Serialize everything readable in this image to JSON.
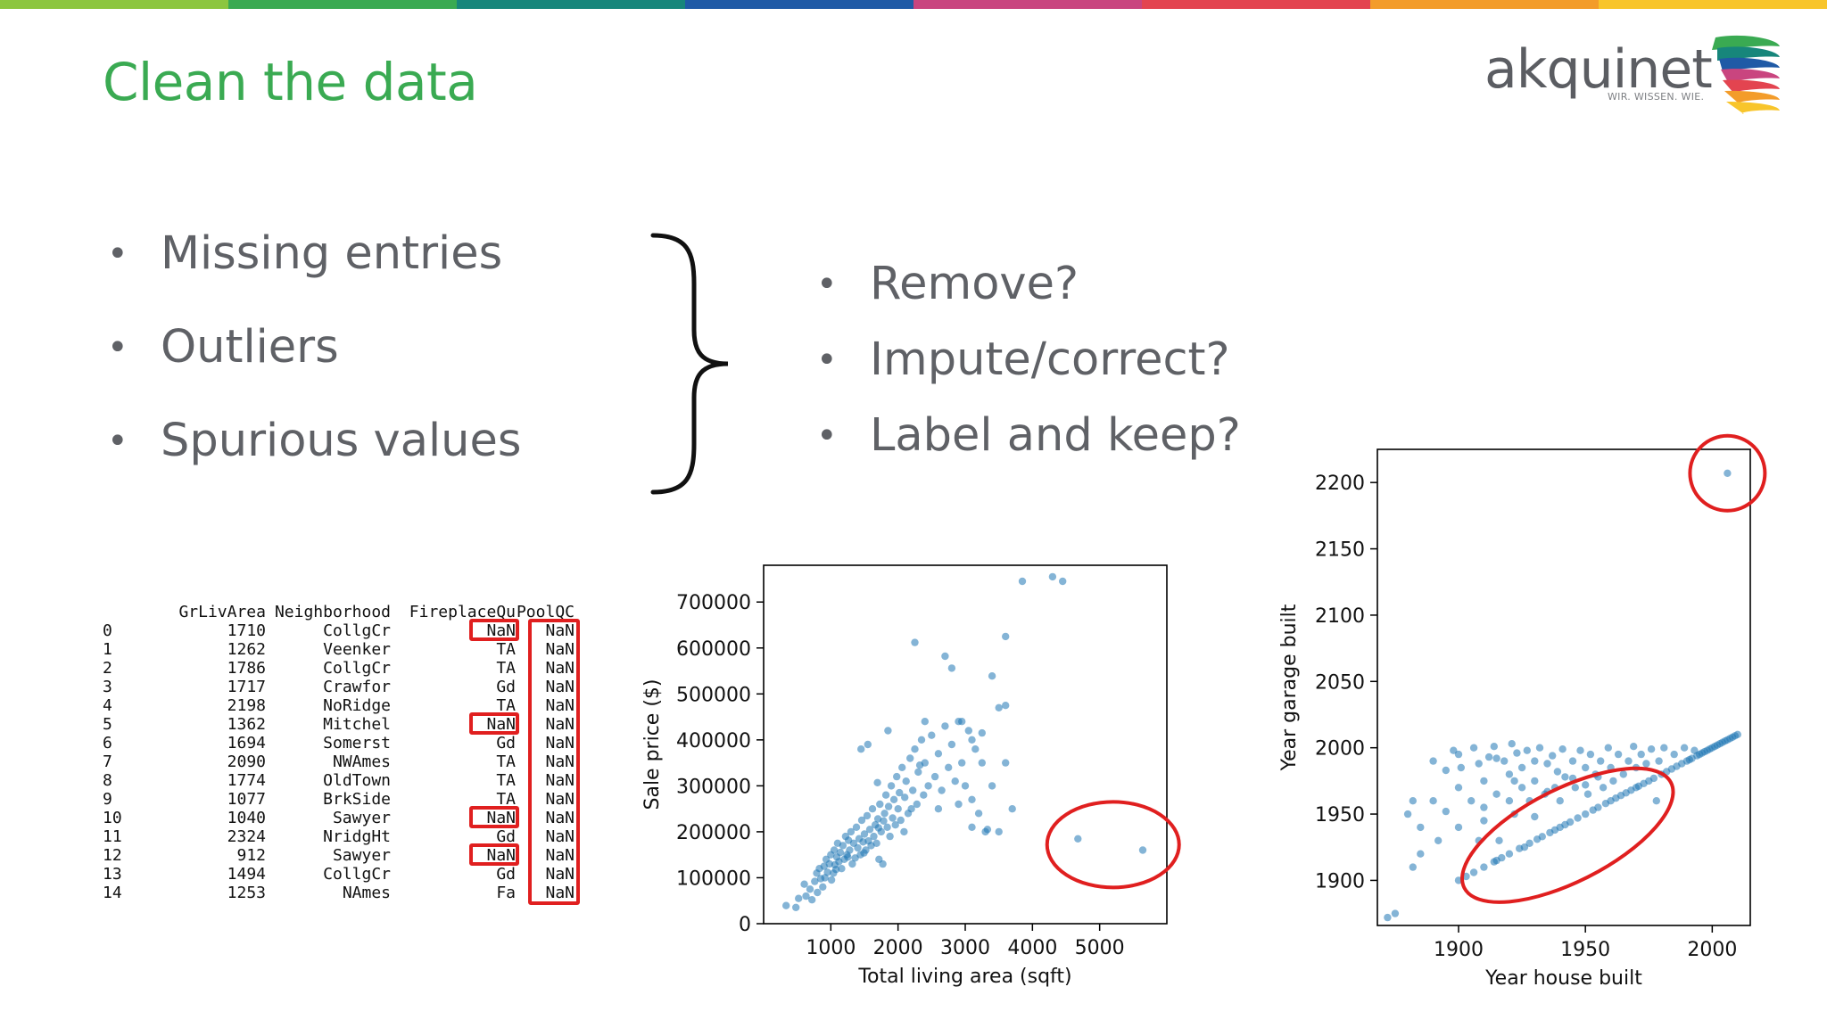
{
  "slide": {
    "title": "Clean the data",
    "stripe_colors": [
      "#8cc63f",
      "#3aaa52",
      "#17867b",
      "#1f5aa6",
      "#c9457f",
      "#e34450",
      "#f39c2a",
      "#f8c52b"
    ]
  },
  "logo": {
    "wordmark": "akquinet",
    "tagline": "WIR. WISSEN. WIE.",
    "swoosh_colors": [
      "#3aaa52",
      "#17867b",
      "#1f5aa6",
      "#c9457f",
      "#e34450",
      "#f39c2a",
      "#f8c52b"
    ]
  },
  "problems": [
    {
      "label": "Missing entries"
    },
    {
      "label": "Outliers"
    },
    {
      "label": "Spurious values"
    }
  ],
  "actions": [
    {
      "label": "Remove?"
    },
    {
      "label": "Impute/correct?"
    },
    {
      "label": "Label and keep?"
    }
  ],
  "table": {
    "columns": [
      "",
      "GrLivArea",
      "Neighborhood",
      "FireplaceQu",
      "PoolQC"
    ],
    "rows": [
      [
        "0",
        "1710",
        "CollgCr",
        "NaN",
        "NaN"
      ],
      [
        "1",
        "1262",
        "Veenker",
        "TA",
        "NaN"
      ],
      [
        "2",
        "1786",
        "CollgCr",
        "TA",
        "NaN"
      ],
      [
        "3",
        "1717",
        "Crawfor",
        "Gd",
        "NaN"
      ],
      [
        "4",
        "2198",
        "NoRidge",
        "TA",
        "NaN"
      ],
      [
        "5",
        "1362",
        "Mitchel",
        "NaN",
        "NaN"
      ],
      [
        "6",
        "1694",
        "Somerst",
        "Gd",
        "NaN"
      ],
      [
        "7",
        "2090",
        "NWAmes",
        "TA",
        "NaN"
      ],
      [
        "8",
        "1774",
        "OldTown",
        "TA",
        "NaN"
      ],
      [
        "9",
        "1077",
        "BrkSide",
        "TA",
        "NaN"
      ],
      [
        "10",
        "1040",
        "Sawyer",
        "NaN",
        "NaN"
      ],
      [
        "11",
        "2324",
        "NridgHt",
        "Gd",
        "NaN"
      ],
      [
        "12",
        "912",
        "Sawyer",
        "NaN",
        "NaN"
      ],
      [
        "13",
        "1494",
        "CollgCr",
        "Gd",
        "NaN"
      ],
      [
        "14",
        "1253",
        "NAmes",
        "Fa",
        "NaN"
      ]
    ],
    "highlight_color": "#e01f1f"
  },
  "chart_data": [
    {
      "type": "scatter",
      "title": "",
      "xlabel": "Total living area (sqft)",
      "ylabel": "Sale price ($)",
      "xlim": [
        0,
        6000
      ],
      "ylim": [
        0,
        780000
      ],
      "xticks": [
        1000,
        2000,
        3000,
        4000,
        5000
      ],
      "yticks": [
        0,
        100000,
        200000,
        300000,
        400000,
        500000,
        600000,
        700000
      ],
      "grid": false,
      "point_color": "#1f77b4",
      "outlier_circle_color": "#e01f1f",
      "points": [
        [
          334,
          39300
        ],
        [
          480,
          35311
        ],
        [
          520,
          55000
        ],
        [
          605,
          86000
        ],
        [
          630,
          60000
        ],
        [
          690,
          75000
        ],
        [
          720,
          52000
        ],
        [
          760,
          92000
        ],
        [
          790,
          110000
        ],
        [
          800,
          68000
        ],
        [
          830,
          120000
        ],
        [
          850,
          98000
        ],
        [
          880,
          80000
        ],
        [
          900,
          125000
        ],
        [
          912,
          100000
        ],
        [
          930,
          140000
        ],
        [
          950,
          112000
        ],
        [
          980,
          130000
        ],
        [
          1000,
          150000
        ],
        [
          1010,
          95000
        ],
        [
          1040,
          110000
        ],
        [
          1050,
          160000
        ],
        [
          1060,
          128000
        ],
        [
          1077,
          118000
        ],
        [
          1090,
          145000
        ],
        [
          1100,
          175000
        ],
        [
          1120,
          135000
        ],
        [
          1140,
          155000
        ],
        [
          1160,
          120000
        ],
        [
          1180,
          170000
        ],
        [
          1200,
          140000
        ],
        [
          1220,
          190000
        ],
        [
          1240,
          150000
        ],
        [
          1253,
          145000
        ],
        [
          1262,
          181500
        ],
        [
          1280,
          160000
        ],
        [
          1300,
          200000
        ],
        [
          1320,
          130000
        ],
        [
          1340,
          175000
        ],
        [
          1362,
          143000
        ],
        [
          1380,
          210000
        ],
        [
          1400,
          165000
        ],
        [
          1420,
          185000
        ],
        [
          1440,
          150000
        ],
        [
          1460,
          225000
        ],
        [
          1480,
          178000
        ],
        [
          1494,
          154000
        ],
        [
          1500,
          195000
        ],
        [
          1520,
          160000
        ],
        [
          1540,
          235000
        ],
        [
          1560,
          180000
        ],
        [
          1580,
          205000
        ],
        [
          1600,
          170000
        ],
        [
          1620,
          250000
        ],
        [
          1640,
          190000
        ],
        [
          1660,
          215000
        ],
        [
          1680,
          175000
        ],
        [
          1694,
          307000
        ],
        [
          1700,
          228000
        ],
        [
          1710,
          208500
        ],
        [
          1717,
          140000
        ],
        [
          1730,
          260000
        ],
        [
          1750,
          200000
        ],
        [
          1774,
          129900
        ],
        [
          1786,
          223500
        ],
        [
          1800,
          240000
        ],
        [
          1820,
          280000
        ],
        [
          1840,
          210000
        ],
        [
          1860,
          255000
        ],
        [
          1880,
          190000
        ],
        [
          1900,
          300000
        ],
        [
          1920,
          230000
        ],
        [
          1940,
          270000
        ],
        [
          1960,
          215000
        ],
        [
          1980,
          320000
        ],
        [
          2000,
          250000
        ],
        [
          2020,
          285000
        ],
        [
          2040,
          225000
        ],
        [
          2060,
          340000
        ],
        [
          2090,
          200000
        ],
        [
          2100,
          275000
        ],
        [
          2120,
          310000
        ],
        [
          2150,
          240000
        ],
        [
          2180,
          360000
        ],
        [
          2198,
          250000
        ],
        [
          2220,
          290000
        ],
        [
          2250,
          380000
        ],
        [
          2280,
          260000
        ],
        [
          2300,
          330000
        ],
        [
          2324,
          345000
        ],
        [
          2350,
          400000
        ],
        [
          2380,
          280000
        ],
        [
          2400,
          350000
        ],
        [
          2450,
          300000
        ],
        [
          2500,
          410000
        ],
        [
          2550,
          320000
        ],
        [
          2600,
          370000
        ],
        [
          2650,
          290000
        ],
        [
          2700,
          430000
        ],
        [
          2750,
          340000
        ],
        [
          2800,
          390000
        ],
        [
          2850,
          310000
        ],
        [
          2900,
          440000
        ],
        [
          2950,
          350000
        ],
        [
          3000,
          300000
        ],
        [
          3050,
          420000
        ],
        [
          3100,
          270000
        ],
        [
          3150,
          380000
        ],
        [
          3200,
          240000
        ],
        [
          3250,
          350000
        ],
        [
          3300,
          200000
        ],
        [
          3400,
          300000
        ],
        [
          3500,
          200000
        ],
        [
          3600,
          350000
        ],
        [
          3700,
          250000
        ],
        [
          1450,
          380000
        ],
        [
          1550,
          390000
        ],
        [
          1850,
          420000
        ],
        [
          2250,
          612000
        ],
        [
          2400,
          440000
        ],
        [
          2700,
          582000
        ],
        [
          2800,
          556000
        ],
        [
          2950,
          440000
        ],
        [
          3100,
          400000
        ],
        [
          3250,
          415000
        ],
        [
          3400,
          539000
        ],
        [
          3500,
          470000
        ],
        [
          3600,
          625000
        ],
        [
          3600,
          475000
        ],
        [
          4300,
          755000
        ],
        [
          4450,
          745000
        ],
        [
          3850,
          745000
        ],
        [
          2600,
          250000
        ],
        [
          2900,
          260000
        ],
        [
          3100,
          210000
        ],
        [
          3330,
          205000
        ],
        [
          4676,
          184750
        ],
        [
          5642,
          160000
        ]
      ]
    },
    {
      "type": "scatter",
      "title": "",
      "xlabel": "Year house built",
      "ylabel": "Year garage built",
      "xlim": [
        1868,
        2015
      ],
      "ylim": [
        1866,
        2225
      ],
      "xticks": [
        1900,
        1950,
        2000
      ],
      "yticks": [
        1900,
        1950,
        2000,
        2050,
        2100,
        2150,
        2200
      ],
      "grid": false,
      "point_color": "#1f77b4",
      "outlier_circle_color": "#e01f1f",
      "points": [
        [
          1872,
          1872
        ],
        [
          1875,
          1875
        ],
        [
          1880,
          1950
        ],
        [
          1882,
          1960
        ],
        [
          1882,
          1910
        ],
        [
          1885,
          1920
        ],
        [
          1885,
          1940
        ],
        [
          1890,
          1990
        ],
        [
          1890,
          1960
        ],
        [
          1892,
          1930
        ],
        [
          1895,
          1983
        ],
        [
          1898,
          1998
        ],
        [
          1900,
          1970
        ],
        [
          1900,
          1940
        ],
        [
          1901,
          1985
        ],
        [
          1905,
          1960
        ],
        [
          1906,
          2000
        ],
        [
          1908,
          1988
        ],
        [
          1910,
          1975
        ],
        [
          1910,
          1955
        ],
        [
          1912,
          1993
        ],
        [
          1914,
          2001
        ],
        [
          1915,
          1965
        ],
        [
          1916,
          1930
        ],
        [
          1918,
          1990
        ],
        [
          1920,
          1980
        ],
        [
          1920,
          1960
        ],
        [
          1921,
          2003
        ],
        [
          1922,
          1950
        ],
        [
          1923,
          1996
        ],
        [
          1925,
          1985
        ],
        [
          1925,
          1970
        ],
        [
          1926,
          1925
        ],
        [
          1927,
          1998
        ],
        [
          1928,
          1960
        ],
        [
          1930,
          1990
        ],
        [
          1930,
          1975
        ],
        [
          1931,
          1931
        ],
        [
          1932,
          2000
        ],
        [
          1934,
          1965
        ],
        [
          1935,
          1988
        ],
        [
          1936,
          1936
        ],
        [
          1937,
          1994
        ],
        [
          1938,
          1970
        ],
        [
          1939,
          1982
        ],
        [
          1940,
          1960
        ],
        [
          1940,
          1940
        ],
        [
          1941,
          1999
        ],
        [
          1942,
          1978
        ],
        [
          1944,
          1944
        ],
        [
          1945,
          1990
        ],
        [
          1946,
          1970
        ],
        [
          1947,
          1947
        ],
        [
          1948,
          1998
        ],
        [
          1950,
          1985
        ],
        [
          1950,
          1950
        ],
        [
          1951,
          1965
        ],
        [
          1952,
          1995
        ],
        [
          1953,
          1953
        ],
        [
          1954,
          1980
        ],
        [
          1955,
          1955
        ],
        [
          1956,
          1990
        ],
        [
          1957,
          1970
        ],
        [
          1958,
          1958
        ],
        [
          1959,
          2000
        ],
        [
          1960,
          1960
        ],
        [
          1960,
          1985
        ],
        [
          1961,
          1975
        ],
        [
          1962,
          1962
        ],
        [
          1963,
          1995
        ],
        [
          1964,
          1964
        ],
        [
          1965,
          1980
        ],
        [
          1966,
          1966
        ],
        [
          1967,
          1990
        ],
        [
          1968,
          1968
        ],
        [
          1969,
          2001
        ],
        [
          1970,
          1970
        ],
        [
          1970,
          1985
        ],
        [
          1971,
          1971
        ],
        [
          1972,
          1995
        ],
        [
          1973,
          1973
        ],
        [
          1974,
          1988
        ],
        [
          1975,
          1975
        ],
        [
          1976,
          1999
        ],
        [
          1977,
          1977
        ],
        [
          1978,
          1960
        ],
        [
          1979,
          1990
        ],
        [
          1980,
          1980
        ],
        [
          1981,
          2000
        ],
        [
          1982,
          1982
        ],
        [
          1984,
          1984
        ],
        [
          1985,
          1995
        ],
        [
          1986,
          1986
        ],
        [
          1988,
          1988
        ],
        [
          1989,
          2000
        ],
        [
          1990,
          1990
        ],
        [
          1991,
          1991
        ],
        [
          1992,
          1992
        ],
        [
          1993,
          1998
        ],
        [
          1994,
          1994
        ],
        [
          1995,
          1995
        ],
        [
          1996,
          1996
        ],
        [
          1997,
          1997
        ],
        [
          1998,
          1998
        ],
        [
          1999,
          1999
        ],
        [
          2000,
          2000
        ],
        [
          2001,
          2001
        ],
        [
          2002,
          2002
        ],
        [
          2003,
          2003
        ],
        [
          2004,
          2004
        ],
        [
          2005,
          2005
        ],
        [
          2006,
          2006
        ],
        [
          2007,
          2007
        ],
        [
          2008,
          2008
        ],
        [
          2009,
          2009
        ],
        [
          2010,
          2010
        ],
        [
          1900,
          1900
        ],
        [
          1903,
          1903
        ],
        [
          1906,
          1906
        ],
        [
          1910,
          1910
        ],
        [
          1914,
          1914
        ],
        [
          1917,
          1917
        ],
        [
          1920,
          1920
        ],
        [
          1924,
          1924
        ],
        [
          1928,
          1928
        ],
        [
          1933,
          1933
        ],
        [
          1938,
          1938
        ],
        [
          1942,
          1942
        ],
        [
          1915,
          1915
        ],
        [
          1910,
          1945
        ],
        [
          1915,
          1992
        ],
        [
          1922,
          1975
        ],
        [
          1930,
          1948
        ],
        [
          1935,
          1967
        ],
        [
          1945,
          1977
        ],
        [
          1950,
          1972
        ],
        [
          1955,
          1978
        ],
        [
          1900,
          1995
        ],
        [
          1895,
          1952
        ],
        [
          1908,
          1930
        ],
        [
          2006,
          2207
        ]
      ]
    }
  ]
}
